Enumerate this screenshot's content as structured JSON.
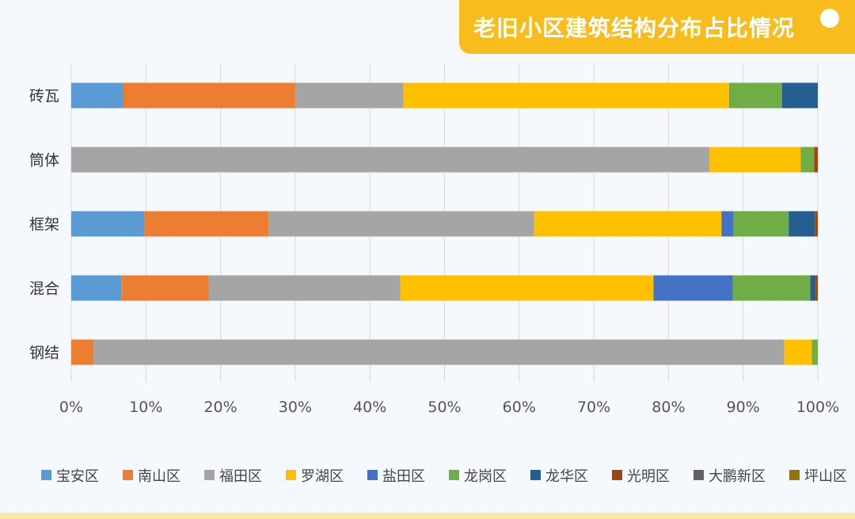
{
  "header": {
    "title": "老旧小区建筑结构分布占比情况"
  },
  "chart_data": {
    "type": "bar",
    "orientation": "horizontal",
    "stacked": "percent",
    "title": "老旧小区建筑结构分布占比情况",
    "categories": [
      "砖瓦",
      "筒体",
      "框架",
      "混合",
      "钢结"
    ],
    "xlim": [
      0,
      100
    ],
    "x_ticks": [
      "0%",
      "10%",
      "20%",
      "30%",
      "40%",
      "50%",
      "60%",
      "70%",
      "80%",
      "90%",
      "100%"
    ],
    "grid": "vertical",
    "legend_position": "bottom",
    "series": [
      {
        "name": "宝安区",
        "color": "#5b9bd5",
        "values": [
          7.0,
          0.0,
          9.8,
          6.7,
          0.0
        ]
      },
      {
        "name": "南山区",
        "color": "#ed7d31",
        "values": [
          23.0,
          0.0,
          16.6,
          11.7,
          3.0
        ]
      },
      {
        "name": "福田区",
        "color": "#a5a5a5",
        "values": [
          14.5,
          85.5,
          35.6,
          25.7,
          92.5
        ]
      },
      {
        "name": "罗湖区",
        "color": "#ffc000",
        "values": [
          43.6,
          12.2,
          25.1,
          33.9,
          3.7
        ]
      },
      {
        "name": "盐田区",
        "color": "#4472c4",
        "values": [
          0.0,
          0.0,
          1.6,
          10.6,
          0.0
        ]
      },
      {
        "name": "龙岗区",
        "color": "#70ad47",
        "values": [
          7.1,
          1.8,
          7.4,
          10.4,
          0.8
        ]
      },
      {
        "name": "龙华区",
        "color": "#255e91",
        "values": [
          4.8,
          0.0,
          3.5,
          0.7,
          0.0
        ]
      },
      {
        "name": "光明区",
        "color": "#9e480e",
        "values": [
          0.0,
          0.5,
          0.4,
          0.3,
          0.0
        ]
      },
      {
        "name": "大鹏新区",
        "color": "#636363",
        "values": [
          0.0,
          0.0,
          0.0,
          0.0,
          0.0
        ]
      },
      {
        "name": "坪山区",
        "color": "#997300",
        "values": [
          0.0,
          0.0,
          0.0,
          0.0,
          0.0
        ]
      }
    ]
  }
}
